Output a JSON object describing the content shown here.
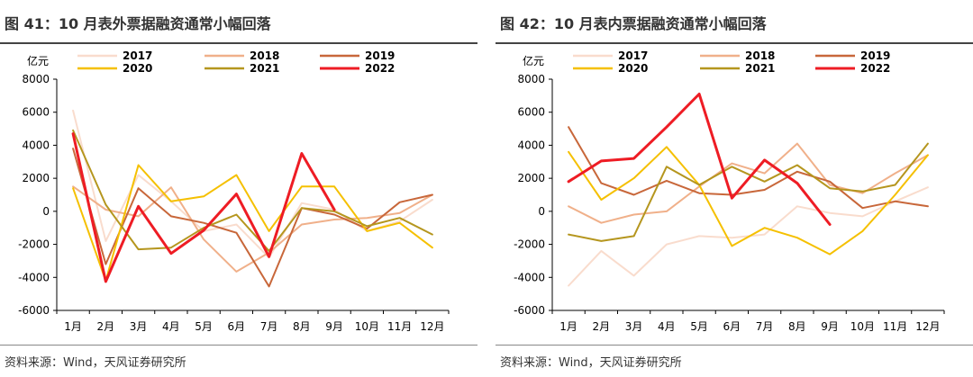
{
  "panels": [
    {
      "title": "图 41：10 月表外票据融资通常小幅回落",
      "source": "资料来源：Wind，天风证券研究所",
      "chart_data": {
        "type": "line",
        "unit": "亿元",
        "categories": [
          "1月",
          "2月",
          "3月",
          "4月",
          "5月",
          "6月",
          "7月",
          "8月",
          "9月",
          "10月",
          "11月",
          "12月"
        ],
        "ylim": [
          -6000,
          8000
        ],
        "yticks": [
          -6000,
          -4000,
          -2000,
          0,
          2000,
          4000,
          6000,
          8000
        ],
        "grid": false,
        "legend_position": "top",
        "series": [
          {
            "name": "2017",
            "color": "#f9dccd",
            "width": 2,
            "values": [
              6100,
              -1800,
              2200,
              600,
              -1200,
              -800,
              -2800,
              500,
              100,
              -1200,
              -600,
              700
            ]
          },
          {
            "name": "2018",
            "color": "#f0b08a",
            "width": 2,
            "values": [
              1500,
              100,
              -300,
              1450,
              -1700,
              -3650,
              -2500,
              -800,
              -500,
              -400,
              -100,
              1000
            ]
          },
          {
            "name": "2019",
            "color": "#c8673a",
            "width": 2,
            "values": [
              3800,
              -3200,
              1400,
              -300,
              -700,
              -1300,
              -4550,
              200,
              -200,
              -1050,
              550,
              1000
            ]
          },
          {
            "name": "2020",
            "color": "#f5c000",
            "width": 2,
            "values": [
              1400,
              -4200,
              2800,
              600,
              900,
              2200,
              -1200,
              1500,
              1500,
              -1200,
              -700,
              -2200
            ]
          },
          {
            "name": "2021",
            "color": "#b5961e",
            "width": 2,
            "values": [
              4900,
              400,
              -2300,
              -2200,
              -1000,
              -200,
              -2400,
              200,
              0,
              -900,
              -400,
              -1400
            ]
          },
          {
            "name": "2022",
            "color": "#ee1c24",
            "width": 3,
            "values": [
              4700,
              -4250,
              300,
              -2550,
              -1150,
              1050,
              -2750,
              3500,
              100,
              null,
              null,
              null
            ]
          }
        ]
      }
    },
    {
      "title": "图 42：10 月表内票据融资通常小幅回落",
      "source": "资料来源：Wind，天风证券研究所",
      "chart_data": {
        "type": "line",
        "unit": "亿元",
        "categories": [
          "1月",
          "2月",
          "3月",
          "4月",
          "5月",
          "6月",
          "7月",
          "8月",
          "9月",
          "10月",
          "11月",
          "12月"
        ],
        "ylim": [
          -6000,
          8000
        ],
        "yticks": [
          -6000,
          -4000,
          -2000,
          0,
          2000,
          4000,
          6000,
          8000
        ],
        "grid": false,
        "legend_position": "top",
        "series": [
          {
            "name": "2017",
            "color": "#f9dccd",
            "width": 2,
            "values": [
              -4500,
              -2400,
              -3900,
              -2000,
              -1500,
              -1600,
              -1400,
              300,
              -100,
              -300,
              600,
              1450
            ]
          },
          {
            "name": "2018",
            "color": "#f0b08a",
            "width": 2,
            "values": [
              300,
              -700,
              -200,
              0,
              1500,
              2900,
              2300,
              4100,
              1600,
              1100,
              2300,
              3400
            ]
          },
          {
            "name": "2019",
            "color": "#c8673a",
            "width": 2,
            "values": [
              5100,
              1700,
              1000,
              1850,
              1100,
              1000,
              1300,
              2400,
              1800,
              200,
              600,
              300
            ]
          },
          {
            "name": "2020",
            "color": "#f5c000",
            "width": 2,
            "values": [
              3600,
              700,
              2000,
              3900,
              1600,
              -2100,
              -1000,
              -1600,
              -2600,
              -1200,
              1000,
              3400
            ]
          },
          {
            "name": "2021",
            "color": "#b5961e",
            "width": 2,
            "values": [
              -1400,
              -1800,
              -1500,
              2700,
              1600,
              2700,
              1800,
              2800,
              1400,
              1200,
              1600,
              4100
            ]
          },
          {
            "name": "2022",
            "color": "#ee1c24",
            "width": 3,
            "values": [
              1800,
              3050,
              3200,
              5100,
              7100,
              800,
              3100,
              1700,
              -800,
              null,
              null,
              null
            ]
          }
        ]
      }
    }
  ]
}
